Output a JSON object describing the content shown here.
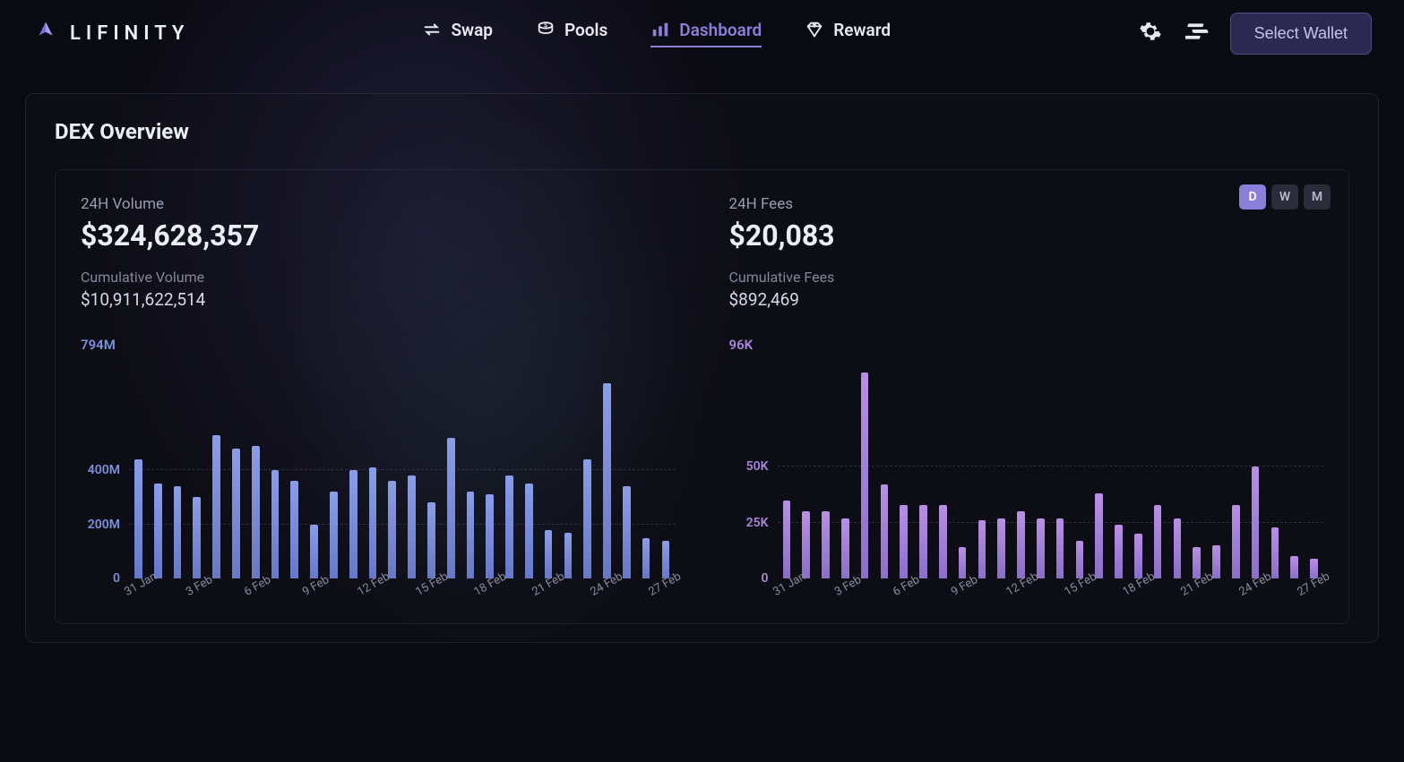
{
  "brand": "LIFINITY",
  "nav": {
    "swap": "Swap",
    "pools": "Pools",
    "dashboard": "Dashboard",
    "reward": "Reward"
  },
  "header": {
    "wallet_button": "Select Wallet"
  },
  "overview": {
    "title": "DEX Overview",
    "timerange": {
      "d": "D",
      "w": "W",
      "m": "M",
      "active": "D"
    }
  },
  "volume": {
    "label": "24H Volume",
    "value": "$324,628,357",
    "cum_label": "Cumulative Volume",
    "cum_value": "$10,911,622,514",
    "chart": {
      "type": "bar",
      "y_max_label": "794M",
      "y_max": 794,
      "y_ticks": [
        {
          "label": "400M",
          "value": 400
        },
        {
          "label": "200M",
          "value": 200
        },
        {
          "label": "0",
          "value": 0
        }
      ],
      "bar_color_top": "#8a9de8",
      "bar_color_bottom": "#6878c8",
      "label_color": "#7d91df",
      "x_labels": [
        "31 Jan",
        "3 Feb",
        "6 Feb",
        "9 Feb",
        "12 Feb",
        "15 Feb",
        "18 Feb",
        "21 Feb",
        "24 Feb",
        "27 Feb"
      ],
      "values": [
        440,
        350,
        340,
        300,
        530,
        480,
        490,
        400,
        360,
        200,
        320,
        400,
        410,
        360,
        380,
        280,
        520,
        320,
        310,
        380,
        350,
        180,
        170,
        440,
        720,
        340,
        150,
        140
      ]
    }
  },
  "fees": {
    "label": "24H Fees",
    "value": "$20,083",
    "cum_label": "Cumulative Fees",
    "cum_value": "$892,469",
    "chart": {
      "type": "bar",
      "y_max_label": "96K",
      "y_max": 96,
      "y_ticks": [
        {
          "label": "50K",
          "value": 50
        },
        {
          "label": "25K",
          "value": 25
        },
        {
          "label": "0",
          "value": 0
        }
      ],
      "bar_color_top": "#b98fe5",
      "bar_color_bottom": "#8a6fc8",
      "label_color": "#aa88db",
      "x_labels": [
        "31 Jan",
        "3 Feb",
        "6 Feb",
        "9 Feb",
        "12 Feb",
        "15 Feb",
        "18 Feb",
        "21 Feb",
        "24 Feb",
        "27 Feb"
      ],
      "values": [
        35,
        30,
        30,
        27,
        92,
        42,
        33,
        33,
        33,
        14,
        26,
        27,
        30,
        27,
        27,
        17,
        38,
        24,
        20,
        33,
        27,
        14,
        15,
        33,
        50,
        23,
        10,
        9
      ]
    }
  }
}
